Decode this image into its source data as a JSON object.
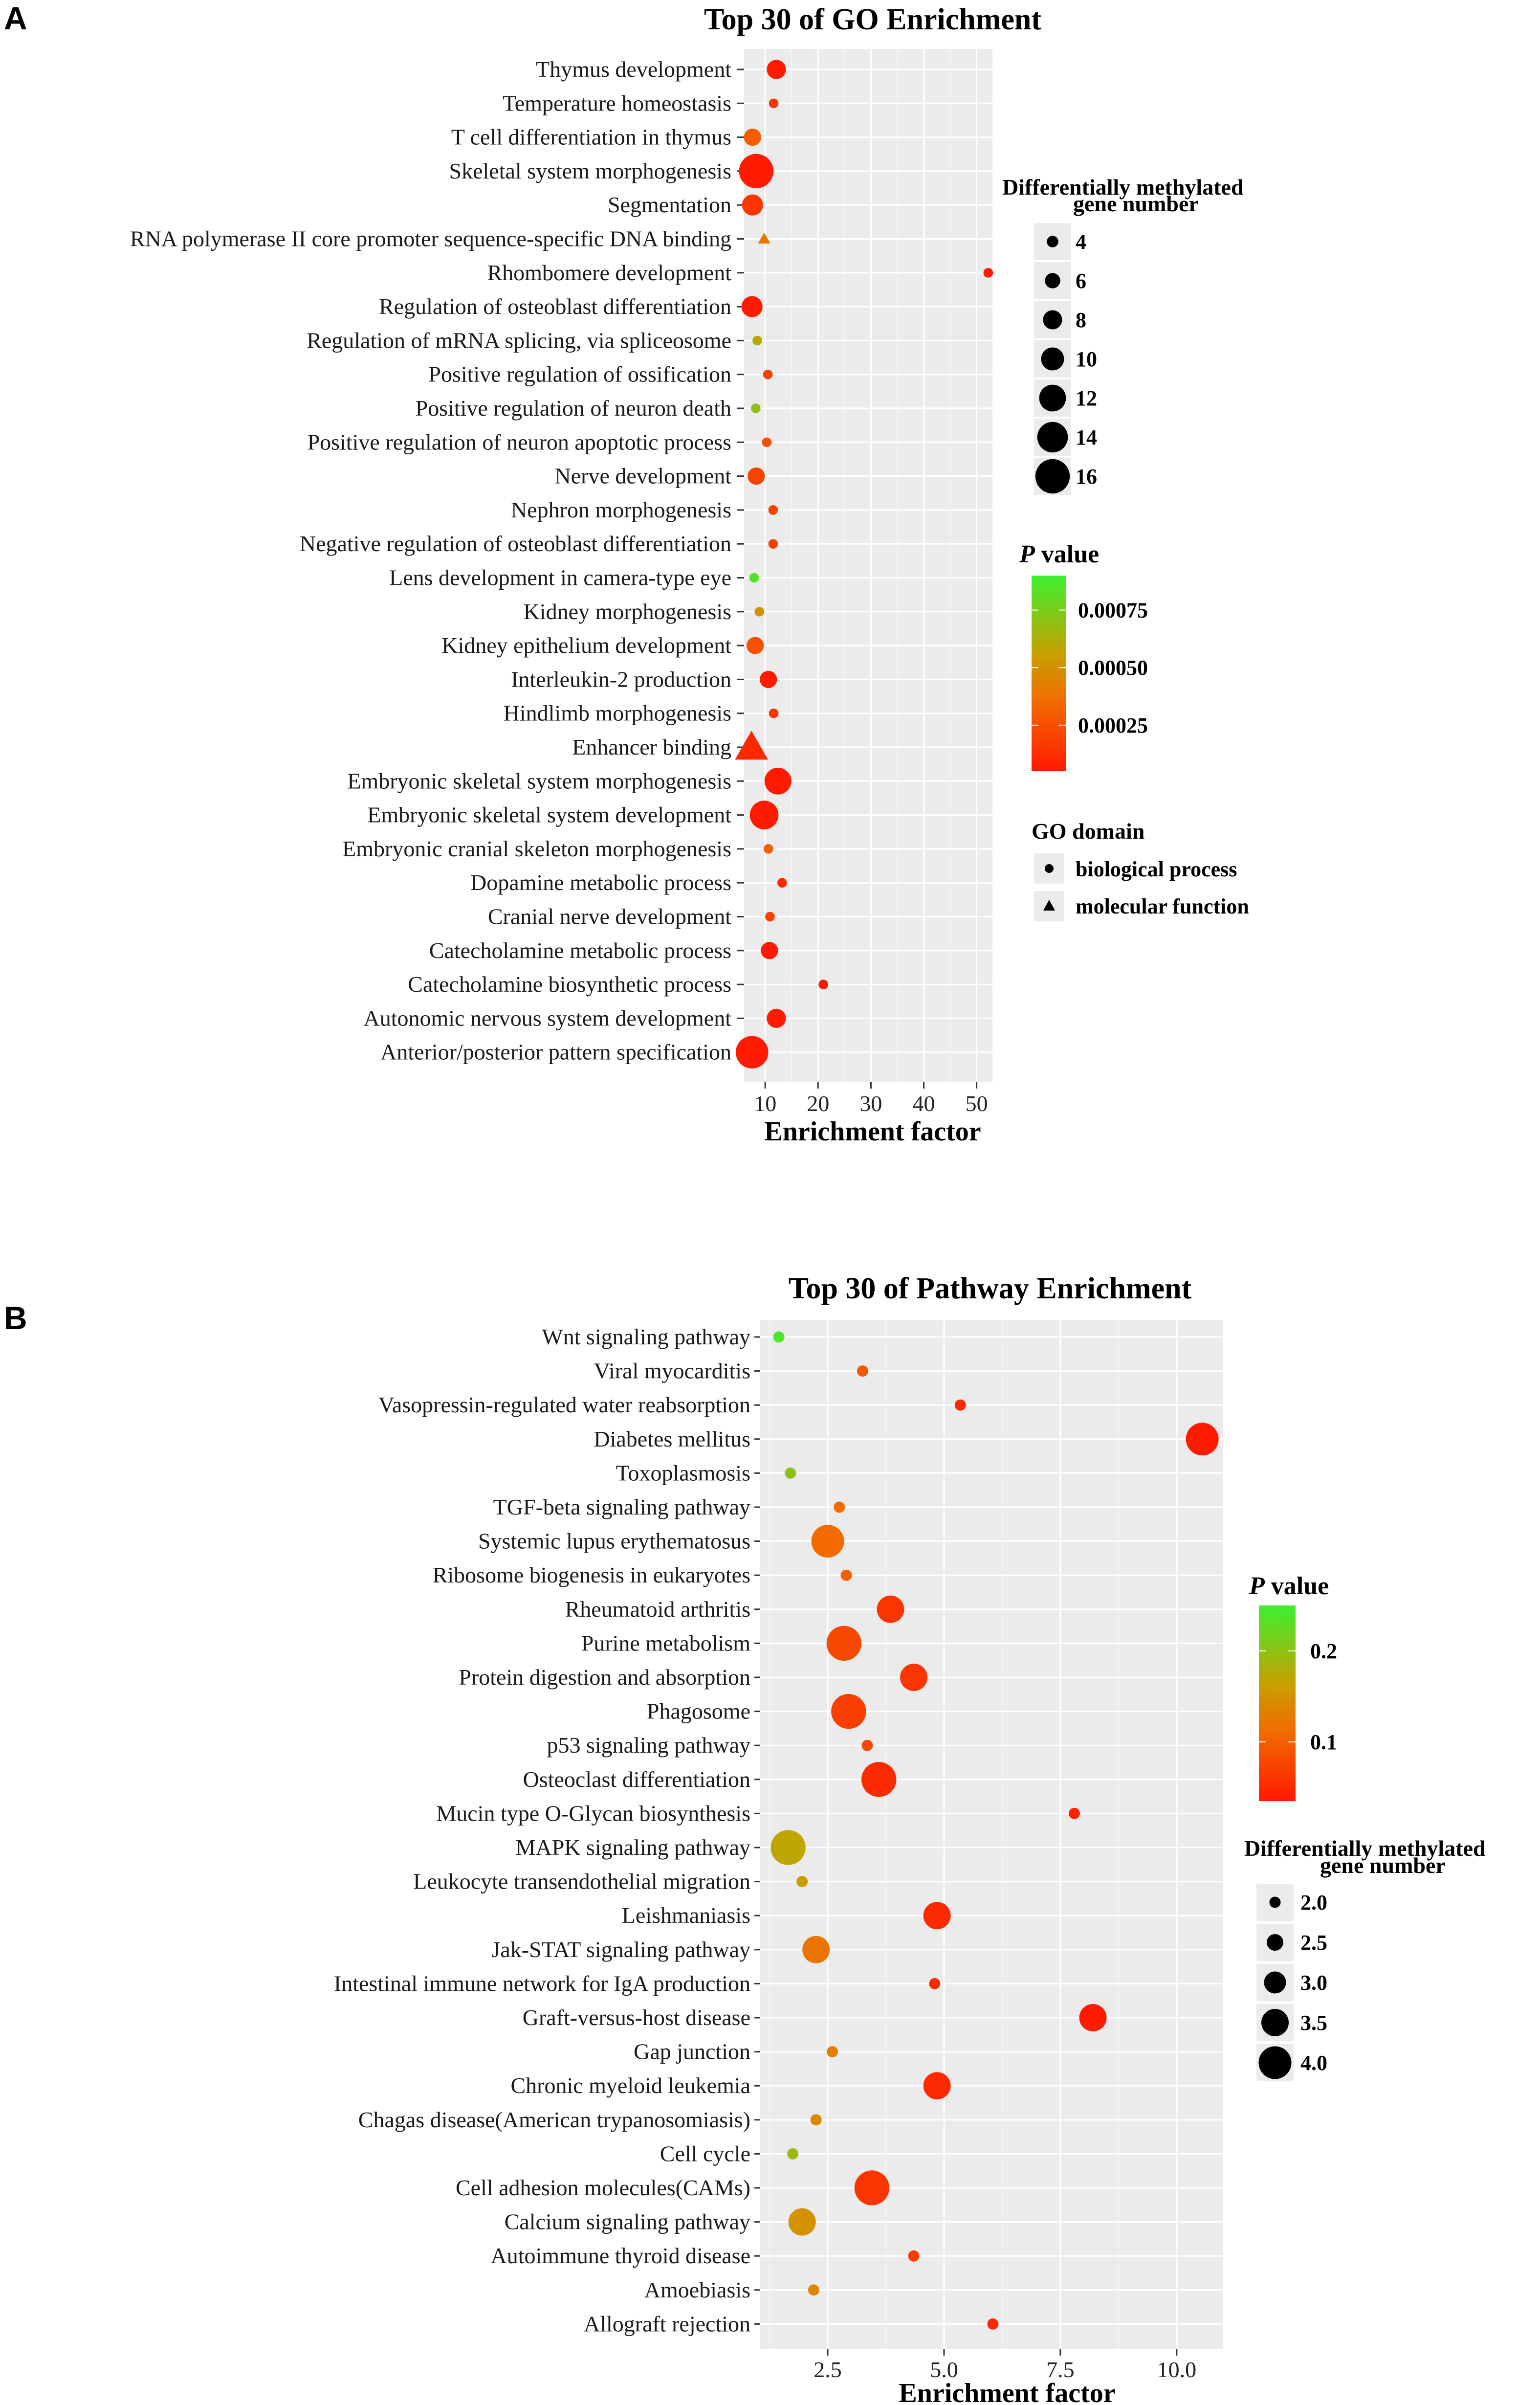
{
  "chart_data": [
    {
      "panel": "A",
      "type": "scatter",
      "title": "Top 30 of GO Enrichment",
      "xlabel": "Enrichment factor",
      "ylabel": "",
      "xlim": [
        6,
        53
      ],
      "xticks": [
        10,
        20,
        30,
        40,
        50
      ],
      "xtick_labels": [
        "10",
        "20",
        "30",
        "40",
        "50"
      ],
      "legend_size": {
        "title_line1": "Differentially methylated",
        "title_line2": "gene number",
        "values": [
          4,
          6,
          8,
          10,
          12,
          14,
          16
        ],
        "labels": [
          "4",
          "6",
          "8",
          "10",
          "12",
          "14",
          "16"
        ]
      },
      "legend_color": {
        "title_italic": "P",
        "title_rest": " value",
        "min": 5e-05,
        "max": 0.0009,
        "ticks": [
          0.00075,
          0.0005,
          0.00025
        ],
        "tick_labels": [
          "0.00075",
          "0.00050",
          "0.00025"
        ]
      },
      "legend_shape": {
        "title": "GO domain",
        "items": [
          {
            "shape": "circle",
            "label": "biological process"
          },
          {
            "shape": "triangle",
            "label": "molecular function"
          }
        ]
      },
      "points": [
        {
          "term": "Thymus development",
          "x": 12.1,
          "size": 8,
          "p": 2e-05,
          "shape": "circle"
        },
        {
          "term": "Temperature homeostasis",
          "x": 11.6,
          "size": 3,
          "p": 0.00015,
          "shape": "circle"
        },
        {
          "term": "T cell differentiation in thymus",
          "x": 7.6,
          "size": 7,
          "p": 0.0003,
          "shape": "circle"
        },
        {
          "term": "Skeletal system morphogenesis",
          "x": 8.3,
          "size": 16,
          "p": 1e-05,
          "shape": "circle"
        },
        {
          "term": "Segmentation",
          "x": 7.6,
          "size": 9,
          "p": 0.00015,
          "shape": "circle"
        },
        {
          "term": "RNA polymerase II core promoter sequence-specific DNA binding",
          "x": 9.8,
          "size": 4,
          "p": 0.0004,
          "shape": "triangle"
        },
        {
          "term": "Rhombomere development",
          "x": 52.2,
          "size": 3,
          "p": 3e-05,
          "shape": "circle"
        },
        {
          "term": "Regulation of osteoblast differentiation",
          "x": 7.5,
          "size": 9,
          "p": 3e-05,
          "shape": "circle"
        },
        {
          "term": "Regulation of mRNA splicing, via spliceosome",
          "x": 8.5,
          "size": 3,
          "p": 0.0006,
          "shape": "circle"
        },
        {
          "term": "Positive regulation of ossification",
          "x": 10.5,
          "size": 3,
          "p": 0.0002,
          "shape": "circle"
        },
        {
          "term": "Positive regulation of neuron death",
          "x": 8.2,
          "size": 3,
          "p": 0.0007,
          "shape": "circle"
        },
        {
          "term": "Positive regulation of neuron apoptotic process",
          "x": 10.3,
          "size": 3,
          "p": 0.00025,
          "shape": "circle"
        },
        {
          "term": "Nerve development",
          "x": 8.3,
          "size": 7,
          "p": 0.0002,
          "shape": "circle"
        },
        {
          "term": "Nephron morphogenesis",
          "x": 11.5,
          "size": 3,
          "p": 0.0002,
          "shape": "circle"
        },
        {
          "term": "Negative regulation of osteoblast differentiation",
          "x": 11.5,
          "size": 3,
          "p": 0.0002,
          "shape": "circle"
        },
        {
          "term": "Lens development in camera-type eye",
          "x": 7.9,
          "size": 3,
          "p": 0.00085,
          "shape": "circle"
        },
        {
          "term": "Kidney morphogenesis",
          "x": 8.9,
          "size": 3,
          "p": 0.0005,
          "shape": "circle"
        },
        {
          "term": "Kidney epithelium development",
          "x": 8.1,
          "size": 7,
          "p": 0.00025,
          "shape": "circle"
        },
        {
          "term": "Interleukin-2 production",
          "x": 10.6,
          "size": 7,
          "p": 5e-05,
          "shape": "circle"
        },
        {
          "term": "Hindlimb morphogenesis",
          "x": 11.6,
          "size": 3,
          "p": 0.00015,
          "shape": "circle"
        },
        {
          "term": "Enhancer binding",
          "x": 7.4,
          "size": 14,
          "p": 0.0001,
          "shape": "triangle"
        },
        {
          "term": "Embryonic skeletal system morphogenesis",
          "x": 12.4,
          "size": 12,
          "p": 1e-05,
          "shape": "circle"
        },
        {
          "term": "Embryonic skeletal system development",
          "x": 9.8,
          "size": 13,
          "p": 1e-05,
          "shape": "circle"
        },
        {
          "term": "Embryonic cranial skeleton morphogenesis",
          "x": 10.6,
          "size": 3,
          "p": 0.0003,
          "shape": "circle"
        },
        {
          "term": "Dopamine metabolic process",
          "x": 13.2,
          "size": 3,
          "p": 0.0001,
          "shape": "circle"
        },
        {
          "term": "Cranial nerve development",
          "x": 10.9,
          "size": 3,
          "p": 0.0002,
          "shape": "circle"
        },
        {
          "term": "Catecholamine metabolic process",
          "x": 10.8,
          "size": 7,
          "p": 4e-05,
          "shape": "circle"
        },
        {
          "term": "Catecholamine biosynthetic process",
          "x": 21.0,
          "size": 3,
          "p": 3e-05,
          "shape": "circle"
        },
        {
          "term": "Autonomic nervous system development",
          "x": 12.1,
          "size": 8,
          "p": 3e-05,
          "shape": "circle"
        },
        {
          "term": "Anterior/posterior pattern specification",
          "x": 7.5,
          "size": 15,
          "p": 1e-05,
          "shape": "circle"
        }
      ]
    },
    {
      "panel": "B",
      "type": "scatter",
      "title": "Top 30 of Pathway Enrichment",
      "xlabel": "Enrichment factor",
      "ylabel": "",
      "xlim": [
        1.05,
        11.0
      ],
      "xticks": [
        2.5,
        5.0,
        7.5,
        10.0
      ],
      "xtick_labels": [
        "2.5",
        "5.0",
        "7.5",
        "10.0"
      ],
      "legend_color": {
        "title_italic": "P",
        "title_rest": " value",
        "min": 0.035,
        "max": 0.25,
        "ticks": [
          0.2,
          0.1
        ],
        "tick_labels": [
          "0.2",
          "0.1"
        ]
      },
      "legend_size": {
        "title_line1": "Differentially methylated",
        "title_line2": "gene number",
        "values": [
          2.0,
          2.5,
          3.0,
          3.5,
          4.0
        ],
        "labels": [
          "2.0",
          "2.5",
          "3.0",
          "3.5",
          "4.0"
        ]
      },
      "points": [
        {
          "term": "Wnt signaling pathway",
          "x": 1.45,
          "size": 2,
          "p": 0.24
        },
        {
          "term": "Viral myocarditis",
          "x": 3.25,
          "size": 2,
          "p": 0.09
        },
        {
          "term": "Vasopressin-regulated water reabsorption",
          "x": 5.35,
          "size": 2,
          "p": 0.05
        },
        {
          "term": "Diabetes mellitus",
          "x": 10.55,
          "size": 4,
          "p": 0.035
        },
        {
          "term": "Toxoplasmosis",
          "x": 1.7,
          "size": 2,
          "p": 0.2
        },
        {
          "term": "TGF-beta signaling pathway",
          "x": 2.75,
          "size": 2,
          "p": 0.11
        },
        {
          "term": "Systemic lupus erythematosus",
          "x": 2.5,
          "size": 4,
          "p": 0.11
        },
        {
          "term": "Ribosome biogenesis in eukaryotes",
          "x": 2.9,
          "size": 2,
          "p": 0.1
        },
        {
          "term": "Rheumatoid arthritis",
          "x": 3.85,
          "size": 3.5,
          "p": 0.06
        },
        {
          "term": "Purine metabolism",
          "x": 2.85,
          "size": 4.2,
          "p": 0.08
        },
        {
          "term": "Protein digestion and absorption",
          "x": 4.35,
          "size": 3.5,
          "p": 0.06
        },
        {
          "term": "Phagosome",
          "x": 2.95,
          "size": 4.2,
          "p": 0.07
        },
        {
          "term": "p53 signaling pathway",
          "x": 3.35,
          "size": 2,
          "p": 0.08
        },
        {
          "term": "Osteoclast differentiation",
          "x": 3.6,
          "size": 4.2,
          "p": 0.05
        },
        {
          "term": "Mucin type O-Glycan biosynthesis",
          "x": 7.8,
          "size": 2,
          "p": 0.04
        },
        {
          "term": "MAPK signaling pathway",
          "x": 1.65,
          "size": 4.2,
          "p": 0.17
        },
        {
          "term": "Leukocyte transendothelial migration",
          "x": 1.95,
          "size": 2,
          "p": 0.16
        },
        {
          "term": "Leishmaniasis",
          "x": 4.85,
          "size": 3.5,
          "p": 0.05
        },
        {
          "term": "Jak-STAT signaling pathway",
          "x": 2.25,
          "size": 3.5,
          "p": 0.12
        },
        {
          "term": "Intestinal immune network for IgA production",
          "x": 4.8,
          "size": 2,
          "p": 0.05
        },
        {
          "term": "Graft-versus-host disease",
          "x": 8.2,
          "size": 3.5,
          "p": 0.035
        },
        {
          "term": "Gap junction",
          "x": 2.6,
          "size": 2,
          "p": 0.13
        },
        {
          "term": "Chronic myeloid leukemia",
          "x": 4.85,
          "size": 3.5,
          "p": 0.05
        },
        {
          "term": "Chagas disease(American trypanosomiasis)",
          "x": 2.25,
          "size": 2,
          "p": 0.14
        },
        {
          "term": "Cell cycle",
          "x": 1.75,
          "size": 2,
          "p": 0.19
        },
        {
          "term": "Cell adhesion molecules(CAMs)",
          "x": 3.45,
          "size": 4.2,
          "p": 0.06
        },
        {
          "term": "Calcium signaling pathway",
          "x": 1.95,
          "size": 3.5,
          "p": 0.15
        },
        {
          "term": "Autoimmune thyroid disease",
          "x": 4.35,
          "size": 2,
          "p": 0.07
        },
        {
          "term": "Amoebiasis",
          "x": 2.2,
          "size": 2,
          "p": 0.14
        },
        {
          "term": "Allograft rejection",
          "x": 6.05,
          "size": 2,
          "p": 0.05
        }
      ]
    }
  ]
}
